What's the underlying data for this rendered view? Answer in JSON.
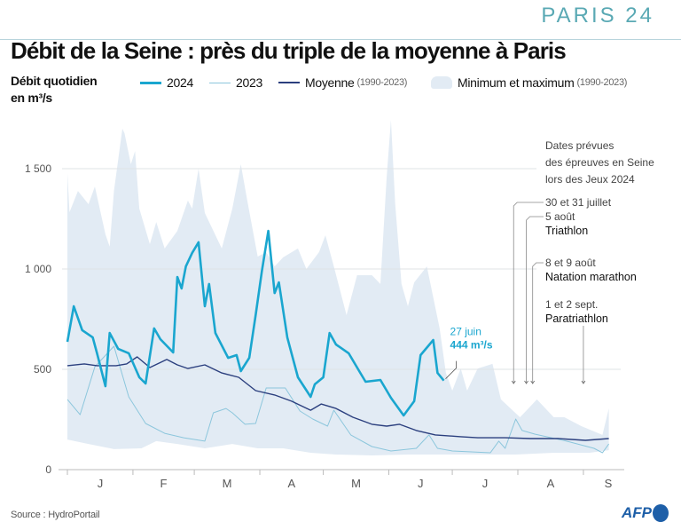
{
  "logo": "PARIS 24",
  "title": "Débit de la Seine : près du triple de la moyenne à Paris",
  "y_label_line1": "Débit quotidien",
  "y_label_line2": "en m³/s",
  "legend": {
    "s2024": "2024",
    "s2023": "2023",
    "avg": "Moyenne",
    "avg_period": "(1990-2023)",
    "range": "Minimum et maximum",
    "range_period": "(1990-2023)"
  },
  "source": "Source : HydroPortail",
  "agency": "AFP",
  "colors": {
    "s2024": "#1aa6cf",
    "s2023": "#8cc6dc",
    "avg": "#2b3f7e",
    "range": "#e2ebf4",
    "annot": "#1aa6cf"
  },
  "chart_data": {
    "type": "line",
    "x_axis": "dates 2024, daily",
    "xlim": [
      "01-01",
      "09-30"
    ],
    "ylim": [
      0,
      1750
    ],
    "y_ticks": [
      {
        "v": 0,
        "label": "0"
      },
      {
        "v": 500,
        "label": "500"
      },
      {
        "v": 1000,
        "label": "1 000"
      },
      {
        "v": 1500,
        "label": "1 500"
      }
    ],
    "x_ticks": [
      {
        "date": "01-01",
        "label": "J"
      },
      {
        "date": "02-01",
        "label": "F"
      },
      {
        "date": "03-01",
        "label": "M"
      },
      {
        "date": "04-01",
        "label": "A"
      },
      {
        "date": "05-01",
        "label": "M"
      },
      {
        "date": "06-01",
        "label": "J"
      },
      {
        "date": "07-01",
        "label": "J"
      },
      {
        "date": "08-01",
        "label": "A"
      },
      {
        "date": "09-01",
        "label": "S"
      }
    ],
    "grid": true,
    "range_series": {
      "name": "Minimum et maximum (1990-2023)",
      "max": [
        [
          "01-01",
          1478
        ],
        [
          "01-02",
          1283
        ],
        [
          "01-06",
          1389
        ],
        [
          "01-11",
          1323
        ],
        [
          "01-14",
          1411
        ],
        [
          "01-19",
          1173
        ],
        [
          "01-21",
          1111
        ],
        [
          "01-23",
          1389
        ],
        [
          "01-27",
          1699
        ],
        [
          "01-28",
          1677
        ],
        [
          "01-31",
          1522
        ],
        [
          "02-02",
          1588
        ],
        [
          "02-04",
          1301
        ],
        [
          "02-09",
          1124
        ],
        [
          "02-12",
          1234
        ],
        [
          "02-16",
          1102
        ],
        [
          "02-22",
          1190
        ],
        [
          "02-27",
          1341
        ],
        [
          "02-29",
          1301
        ],
        [
          "03-03",
          1500
        ],
        [
          "03-06",
          1279
        ],
        [
          "03-14",
          1102
        ],
        [
          "03-19",
          1301
        ],
        [
          "03-23",
          1522
        ],
        [
          "03-26",
          1345
        ],
        [
          "03-31",
          1062
        ],
        [
          "04-04",
          1084
        ],
        [
          "04-08",
          1013
        ],
        [
          "04-12",
          1058
        ],
        [
          "04-19",
          1102
        ],
        [
          "04-23",
          1000
        ],
        [
          "04-29",
          1084
        ],
        [
          "05-02",
          1168
        ],
        [
          "05-06",
          1013
        ],
        [
          "05-12",
          770
        ],
        [
          "05-17",
          969
        ],
        [
          "05-24",
          969
        ],
        [
          "05-28",
          925
        ],
        [
          "05-31",
          1460
        ],
        [
          "06-02",
          1743
        ],
        [
          "06-04",
          1323
        ],
        [
          "06-07",
          925
        ],
        [
          "06-10",
          814
        ],
        [
          "06-13",
          933
        ],
        [
          "06-19",
          1013
        ],
        [
          "06-25",
          704
        ],
        [
          "06-28",
          482
        ],
        [
          "07-01",
          394
        ],
        [
          "07-05",
          504
        ],
        [
          "07-08",
          394
        ],
        [
          "07-13",
          504
        ],
        [
          "07-20",
          527
        ],
        [
          "07-24",
          350
        ],
        [
          "08-02",
          261
        ],
        [
          "08-06",
          305
        ],
        [
          "08-10",
          350
        ],
        [
          "08-18",
          261
        ],
        [
          "08-23",
          261
        ],
        [
          "08-31",
          217
        ],
        [
          "09-10",
          173
        ],
        [
          "09-13",
          305
        ]
      ],
      "min": [
        [
          "01-01",
          150
        ],
        [
          "01-11",
          128
        ],
        [
          "01-23",
          102
        ],
        [
          "02-05",
          106
        ],
        [
          "02-12",
          142
        ],
        [
          "02-22",
          128
        ],
        [
          "03-06",
          106
        ],
        [
          "03-19",
          128
        ],
        [
          "03-31",
          106
        ],
        [
          "04-12",
          106
        ],
        [
          "04-25",
          84
        ],
        [
          "05-07",
          75
        ],
        [
          "05-24",
          71
        ],
        [
          "06-10",
          75
        ],
        [
          "06-27",
          75
        ],
        [
          "07-13",
          75
        ],
        [
          "07-31",
          75
        ],
        [
          "08-18",
          84
        ],
        [
          "09-04",
          84
        ],
        [
          "09-13",
          97
        ]
      ]
    },
    "series": [
      {
        "name": "2023",
        "points": [
          [
            "01-01",
            350
          ],
          [
            "01-07",
            274
          ],
          [
            "01-14",
            513
          ],
          [
            "01-23",
            615
          ],
          [
            "01-30",
            363
          ],
          [
            "02-07",
            230
          ],
          [
            "02-16",
            181
          ],
          [
            "02-25",
            159
          ],
          [
            "03-06",
            142
          ],
          [
            "03-10",
            283
          ],
          [
            "03-16",
            305
          ],
          [
            "03-19",
            283
          ],
          [
            "03-25",
            226
          ],
          [
            "03-30",
            230
          ],
          [
            "04-04",
            407
          ],
          [
            "04-13",
            407
          ],
          [
            "04-20",
            292
          ],
          [
            "04-26",
            252
          ],
          [
            "05-03",
            217
          ],
          [
            "05-06",
            296
          ],
          [
            "05-14",
            173
          ],
          [
            "05-24",
            115
          ],
          [
            "06-02",
            93
          ],
          [
            "06-14",
            106
          ],
          [
            "06-20",
            173
          ],
          [
            "06-24",
            106
          ],
          [
            "07-01",
            93
          ],
          [
            "07-19",
            84
          ],
          [
            "07-23",
            142
          ],
          [
            "07-26",
            106
          ],
          [
            "07-31",
            252
          ],
          [
            "08-03",
            195
          ],
          [
            "08-09",
            177
          ],
          [
            "08-24",
            142
          ],
          [
            "09-06",
            106
          ],
          [
            "09-10",
            84
          ],
          [
            "09-13",
            128
          ]
        ]
      },
      {
        "name": "Moyenne (1990-2023)",
        "points": [
          [
            "01-01",
            518
          ],
          [
            "01-09",
            527
          ],
          [
            "01-15",
            518
          ],
          [
            "01-24",
            518
          ],
          [
            "01-29",
            527
          ],
          [
            "02-03",
            562
          ],
          [
            "02-09",
            509
          ],
          [
            "02-17",
            549
          ],
          [
            "02-22",
            522
          ],
          [
            "02-27",
            504
          ],
          [
            "03-06",
            522
          ],
          [
            "03-14",
            482
          ],
          [
            "03-22",
            460
          ],
          [
            "03-30",
            394
          ],
          [
            "04-08",
            372
          ],
          [
            "04-16",
            341
          ],
          [
            "04-25",
            296
          ],
          [
            "04-30",
            327
          ],
          [
            "05-07",
            305
          ],
          [
            "05-15",
            261
          ],
          [
            "05-24",
            226
          ],
          [
            "05-31",
            217
          ],
          [
            "06-06",
            226
          ],
          [
            "06-14",
            195
          ],
          [
            "06-23",
            173
          ],
          [
            "07-05",
            164
          ],
          [
            "07-13",
            159
          ],
          [
            "07-26",
            159
          ],
          [
            "08-07",
            155
          ],
          [
            "08-20",
            155
          ],
          [
            "09-02",
            146
          ],
          [
            "09-13",
            155
          ]
        ]
      },
      {
        "name": "2024",
        "points": [
          [
            "01-01",
            637
          ],
          [
            "01-04",
            814
          ],
          [
            "01-08",
            695
          ],
          [
            "01-13",
            659
          ],
          [
            "01-15",
            580
          ],
          [
            "01-19",
            416
          ],
          [
            "01-21",
            681
          ],
          [
            "01-25",
            602
          ],
          [
            "01-30",
            580
          ],
          [
            "02-04",
            460
          ],
          [
            "02-07",
            429
          ],
          [
            "02-11",
            704
          ],
          [
            "02-14",
            650
          ],
          [
            "02-20",
            584
          ],
          [
            "02-22",
            960
          ],
          [
            "02-24",
            903
          ],
          [
            "02-26",
            1013
          ],
          [
            "02-29",
            1080
          ],
          [
            "03-03",
            1133
          ],
          [
            "03-06",
            814
          ],
          [
            "03-08",
            925
          ],
          [
            "03-11",
            681
          ],
          [
            "03-17",
            557
          ],
          [
            "03-21",
            571
          ],
          [
            "03-23",
            491
          ],
          [
            "03-27",
            557
          ],
          [
            "03-30",
            770
          ],
          [
            "04-02",
            991
          ],
          [
            "04-05",
            1190
          ],
          [
            "04-08",
            880
          ],
          [
            "04-10",
            933
          ],
          [
            "04-14",
            659
          ],
          [
            "04-19",
            460
          ],
          [
            "04-25",
            363
          ],
          [
            "04-27",
            425
          ],
          [
            "05-01",
            460
          ],
          [
            "05-04",
            681
          ],
          [
            "05-07",
            624
          ],
          [
            "05-13",
            580
          ],
          [
            "05-18",
            491
          ],
          [
            "05-21",
            438
          ],
          [
            "05-28",
            447
          ],
          [
            "06-02",
            358
          ],
          [
            "06-08",
            270
          ],
          [
            "06-13",
            341
          ],
          [
            "06-16",
            571
          ],
          [
            "06-22",
            646
          ],
          [
            "06-24",
            482
          ],
          [
            "06-27",
            444
          ]
        ]
      }
    ],
    "last_value_annotation": {
      "date_label": "27 juin",
      "value_label": "444 m³/s",
      "date": "06-27",
      "value": 444
    },
    "events_title": [
      "Dates prévues",
      "des épreuves en Seine",
      "lors des Jeux 2024"
    ],
    "events": [
      {
        "date": "07-30",
        "label": "30 et 31 juillet",
        "sport": ""
      },
      {
        "date": "08-05",
        "label": "5 août",
        "sport": "Triathlon"
      },
      {
        "date": "08-08",
        "label": "8 et 9 août",
        "sport": "Natation marathon"
      },
      {
        "date": "09-01",
        "label": "1 et 2 sept.",
        "sport": "Paratriathlon"
      }
    ]
  }
}
